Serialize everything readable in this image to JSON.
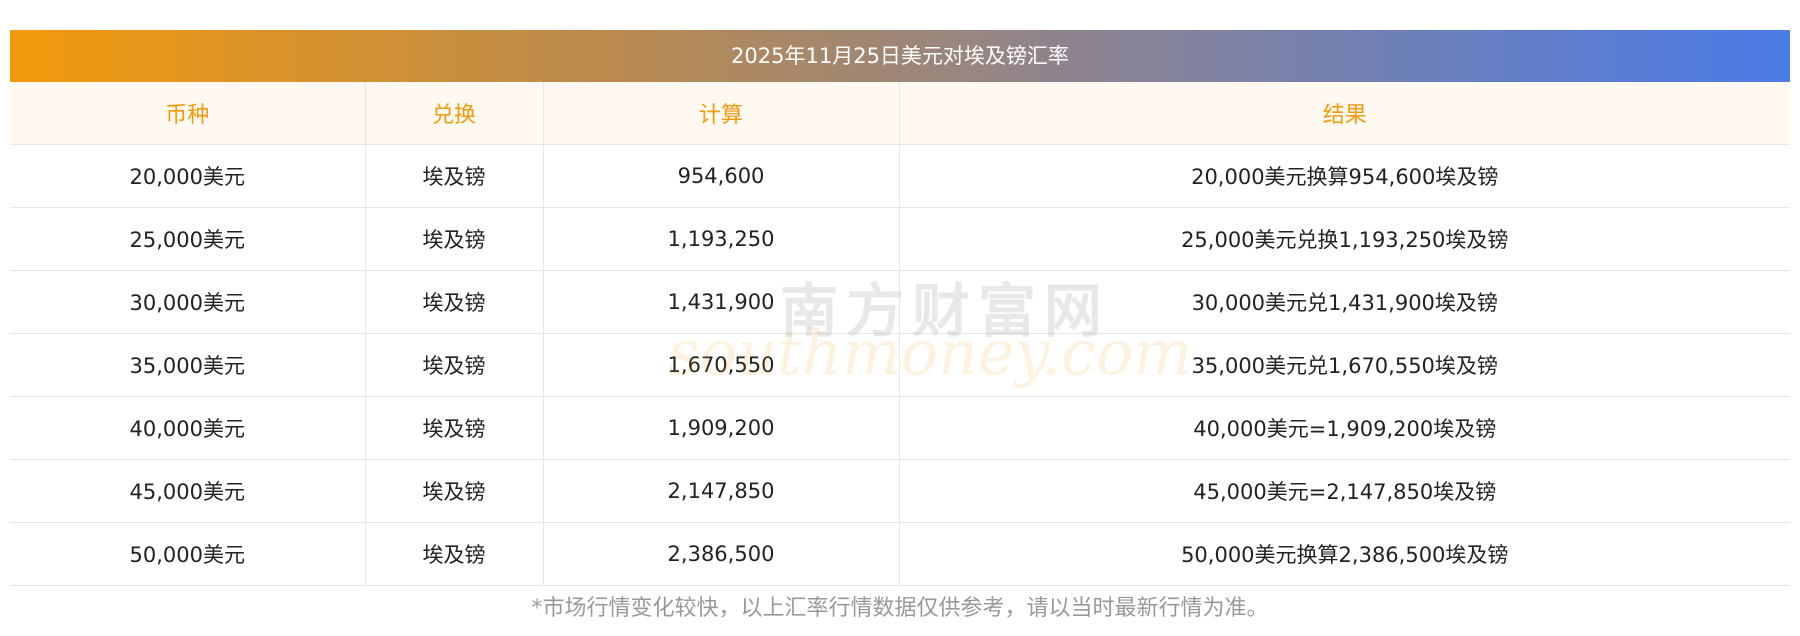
{
  "title": "2025年11月25日美元对埃及镑汇率",
  "headers": [
    "币种",
    "兑换",
    "计算",
    "结果"
  ],
  "rows": [
    [
      "20,000美元",
      "埃及镑",
      "954,600",
      "20,000美元换算954,600埃及镑"
    ],
    [
      "25,000美元",
      "埃及镑",
      "1,193,250",
      "25,000美元兑换1,193,250埃及镑"
    ],
    [
      "30,000美元",
      "埃及镑",
      "1,431,900",
      "30,000美元兑1,431,900埃及镑"
    ],
    [
      "35,000美元",
      "埃及镑",
      "1,670,550",
      "35,000美元兑1,670,550埃及镑"
    ],
    [
      "40,000美元",
      "埃及镑",
      "1,909,200",
      "40,000美元=1,909,200埃及镑"
    ],
    [
      "45,000美元",
      "埃及镑",
      "2,147,850",
      "45,000美元=2,147,850埃及镑"
    ],
    [
      "50,000美元",
      "埃及镑",
      "2,386,500",
      "50,000美元换算2,386,500埃及镑"
    ]
  ],
  "watermark": {
    "cn": "南方财富网",
    "en": "southmoney.com"
  },
  "footnote": "*市场行情变化较快，以上汇率行情数据仅供参考，请以当时最新行情为准。",
  "colors": {
    "accent_orange": "#f39a0b",
    "accent_blue": "#4a7be8",
    "header_bg": "#fff9f2",
    "note_gray": "#999999"
  }
}
